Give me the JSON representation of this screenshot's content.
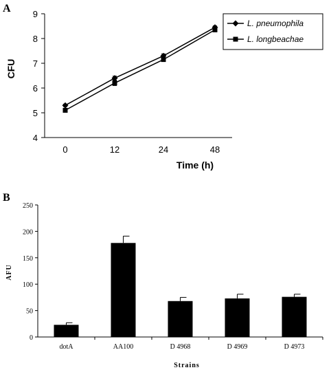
{
  "panels": {
    "a": {
      "label": "A"
    },
    "b": {
      "label": "B"
    }
  },
  "chart_data": [
    {
      "type": "line",
      "title": "",
      "xlabel": "Time (h)",
      "ylabel": "CFU",
      "categories": [
        "0",
        "12",
        "24",
        "48"
      ],
      "ylim": [
        4,
        9
      ],
      "yticks": [
        "4",
        "5",
        "6",
        "7",
        "8",
        "9"
      ],
      "grid": false,
      "legend": "top-right",
      "series": [
        {
          "name": "L. pneumophila",
          "marker": "diamond",
          "values": [
            5.3,
            6.4,
            7.3,
            8.45
          ],
          "errors": [
            0.05,
            0.08,
            0.08,
            0.06
          ]
        },
        {
          "name": "L. longbeachae",
          "marker": "square",
          "values": [
            5.1,
            6.2,
            7.15,
            8.35
          ],
          "errors": [
            0.06,
            0.1,
            0.08,
            0.08
          ]
        }
      ]
    },
    {
      "type": "bar",
      "title": "",
      "xlabel": "Strains",
      "ylabel": "AFU",
      "categories": [
        "dotA",
        "AA100",
        "D 4968",
        "D 4969",
        "D 4973"
      ],
      "values": [
        23,
        178,
        68,
        73,
        76
      ],
      "errors": [
        4,
        13,
        7,
        8,
        5
      ],
      "ylim": [
        0,
        250
      ],
      "yticks": [
        "0",
        "50",
        "100",
        "150",
        "200",
        "250"
      ],
      "grid": false,
      "bar_color": "#000000"
    }
  ]
}
